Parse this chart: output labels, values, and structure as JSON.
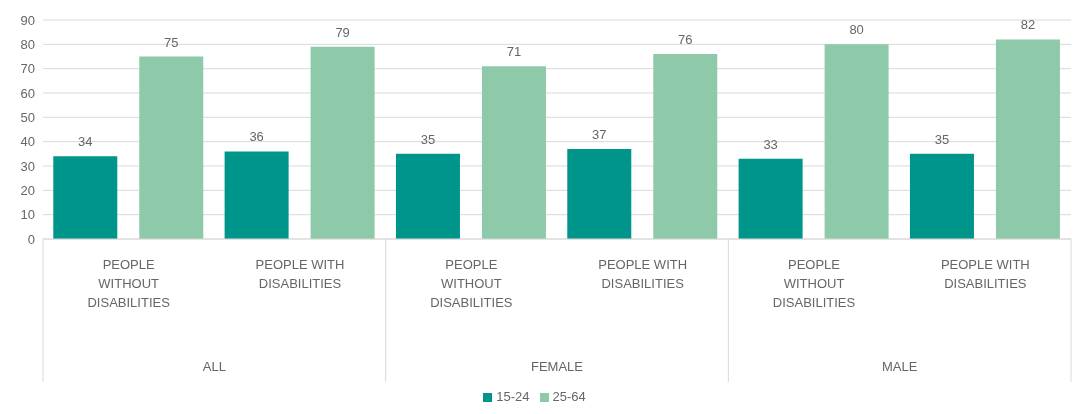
{
  "chart_data": {
    "type": "bar",
    "categories": [
      "PEOPLE WITHOUT DISABILITIES",
      "PEOPLE WITH DISABILITIES",
      "PEOPLE WITHOUT DISABILITIES",
      "PEOPLE WITH DISABILITIES",
      "PEOPLE WITHOUT DISABILITIES",
      "PEOPLE WITH DISABILITIES"
    ],
    "series": [
      {
        "name": "15-24",
        "color": "#00958a",
        "values": [
          34,
          36,
          35,
          37,
          33,
          35
        ]
      },
      {
        "name": "25-64",
        "color": "#8ecaa9",
        "values": [
          75,
          79,
          71,
          76,
          80,
          82
        ]
      }
    ],
    "annotations": [
      "ALL",
      "FEMALE",
      "MALE"
    ],
    "ylim": [
      0,
      90
    ],
    "yticks": [
      0,
      10,
      20,
      30,
      40,
      50,
      60,
      70,
      80,
      90
    ],
    "grid": "y",
    "legend": "bottom",
    "data_labels": true
  }
}
